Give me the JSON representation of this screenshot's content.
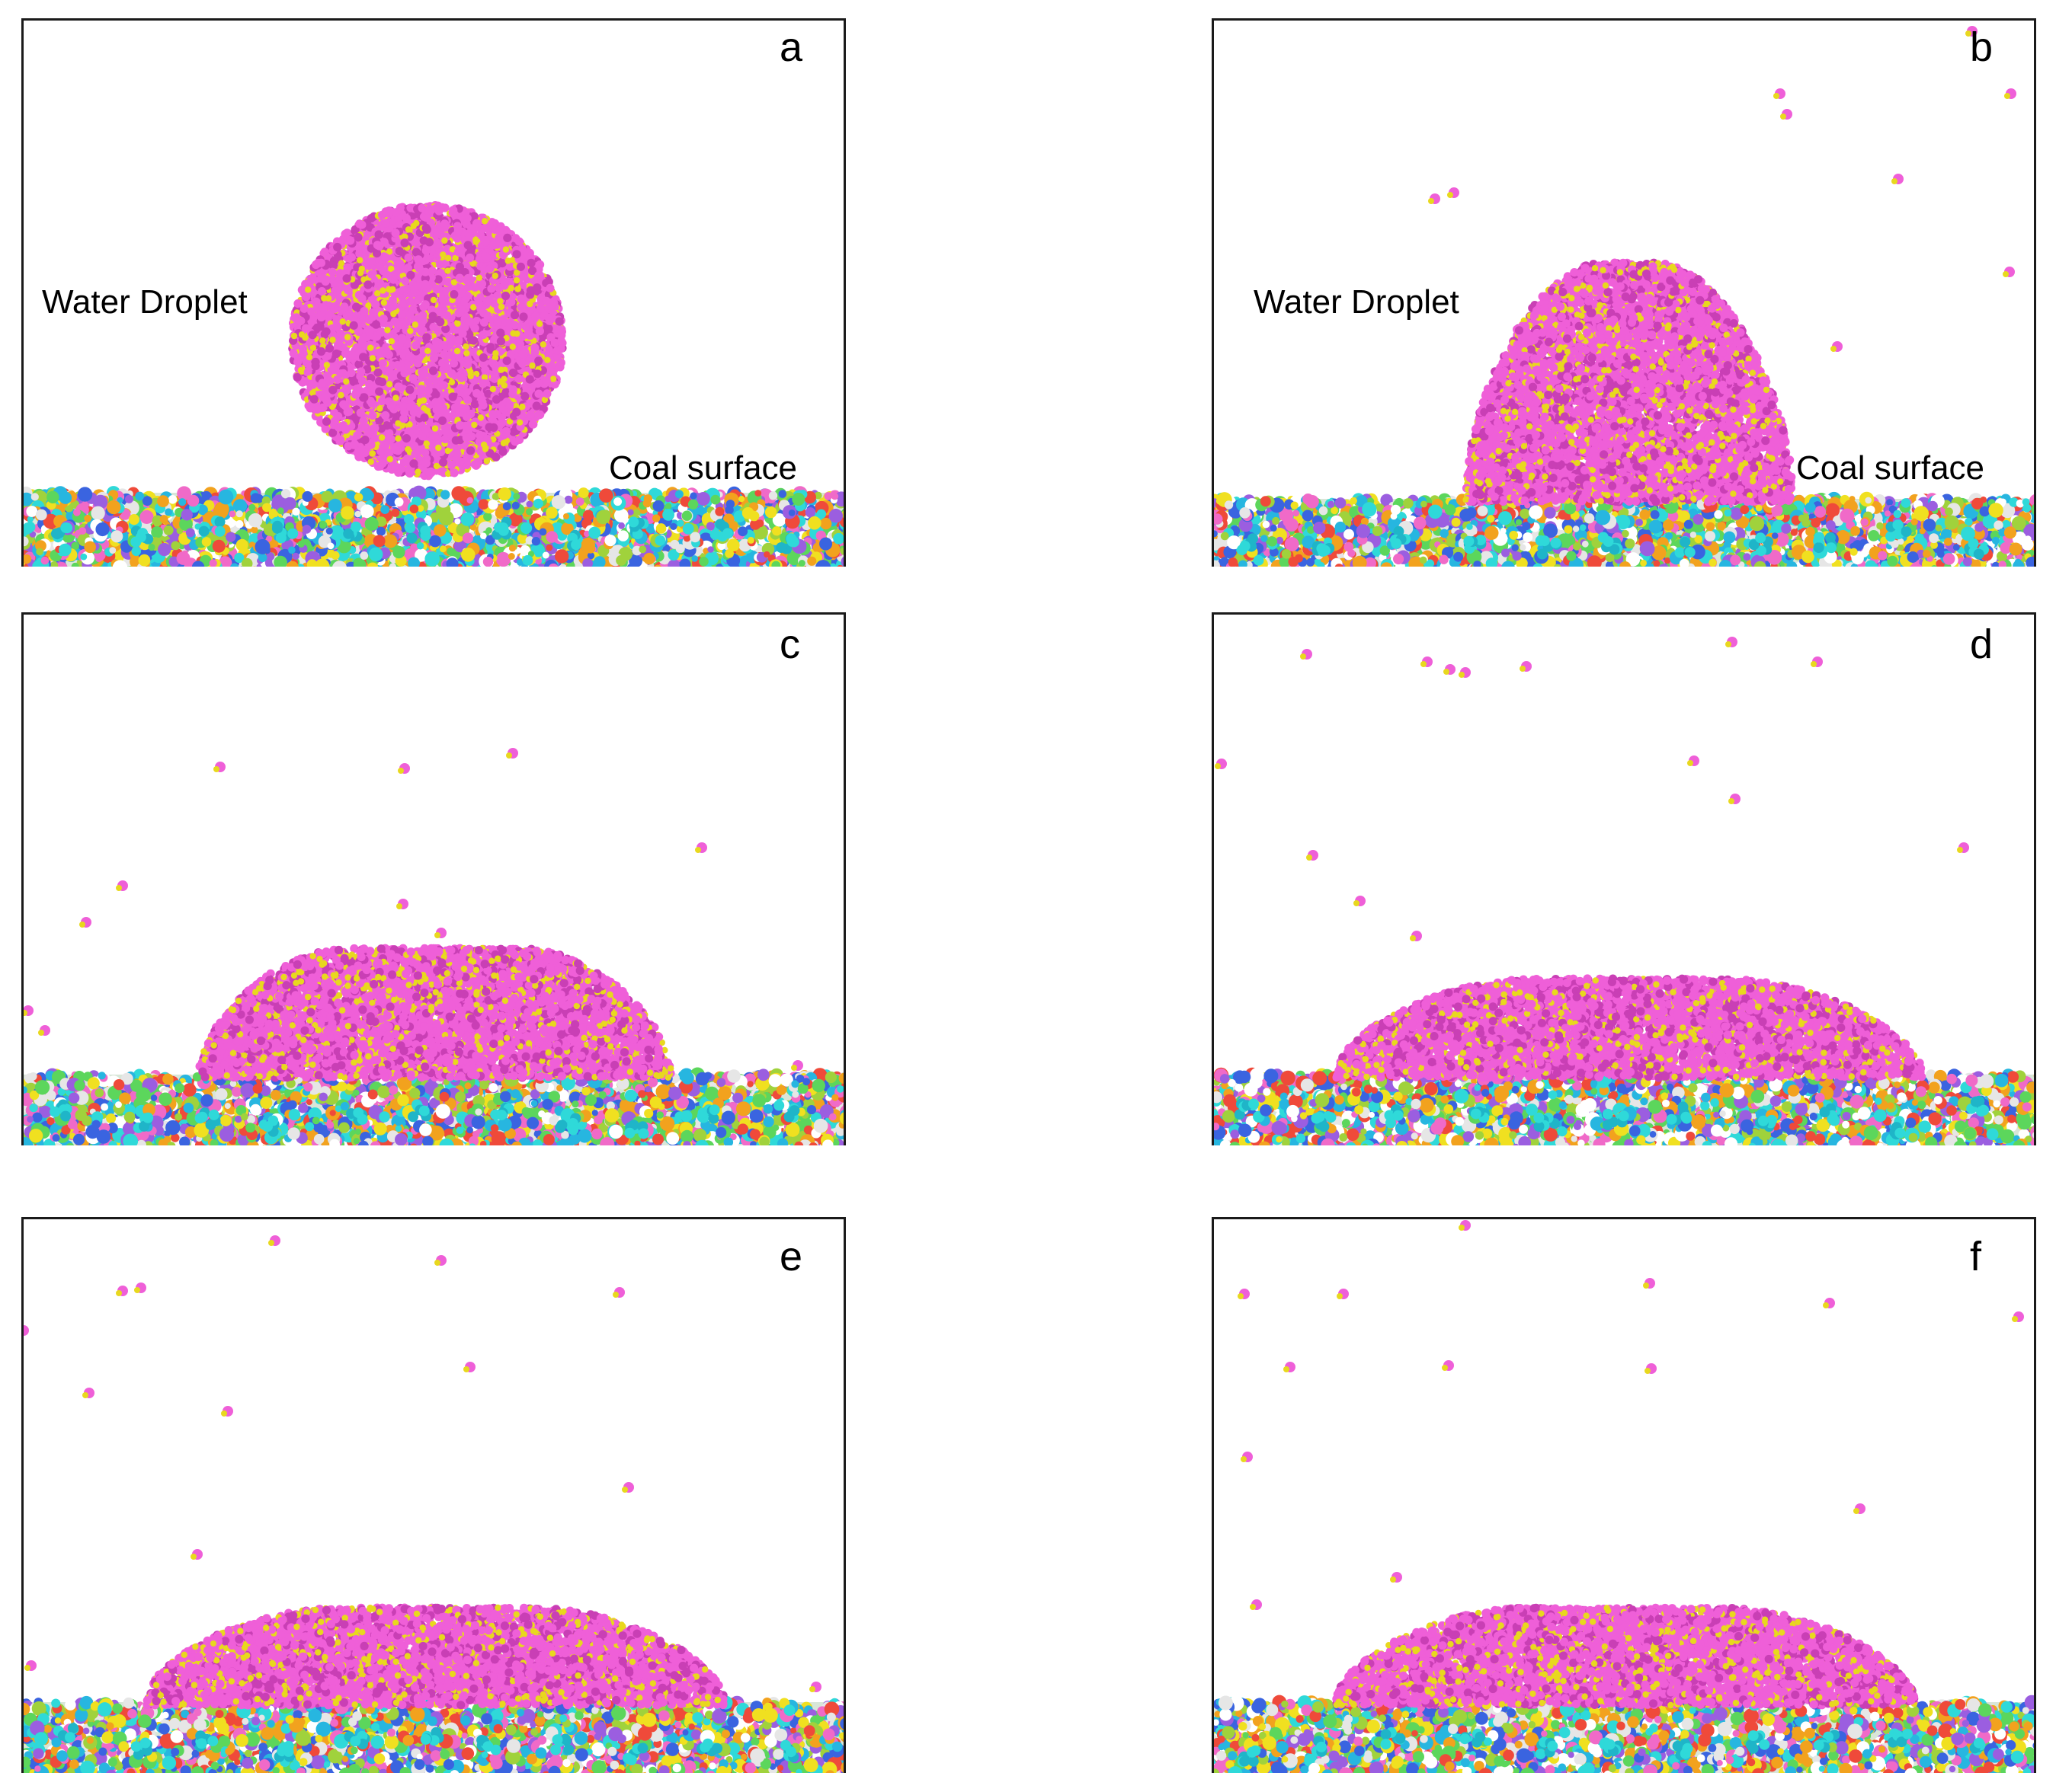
{
  "panels": [
    {
      "id": "a",
      "letter": "a",
      "shape": "sphere",
      "water_label": "Water Droplet",
      "surface_label": "Coal surface"
    },
    {
      "id": "b",
      "letter": "b",
      "shape": "dome-tall",
      "water_label": "Water Droplet",
      "surface_label": "Coal surface"
    },
    {
      "id": "c",
      "letter": "c",
      "shape": "dome-mid"
    },
    {
      "id": "d",
      "letter": "d",
      "shape": "dome-flat"
    },
    {
      "id": "e",
      "letter": "e",
      "shape": "dome-flat-wide"
    },
    {
      "id": "f",
      "letter": "f",
      "shape": "dome-flat-wide"
    }
  ],
  "colors": {
    "water_pink": "#ef5fd8",
    "water_dark": "#c93fb5",
    "water_yellow": "#e8d81e",
    "coal_palette": [
      "#2fd9d9",
      "#27b6e0",
      "#f0e020",
      "#f2a21e",
      "#ef4a3a",
      "#5cd65c",
      "#a0d23c",
      "#9b5ee0",
      "#ffffff",
      "#e6e6e6",
      "#3a64e0",
      "#f06ac8"
    ]
  }
}
